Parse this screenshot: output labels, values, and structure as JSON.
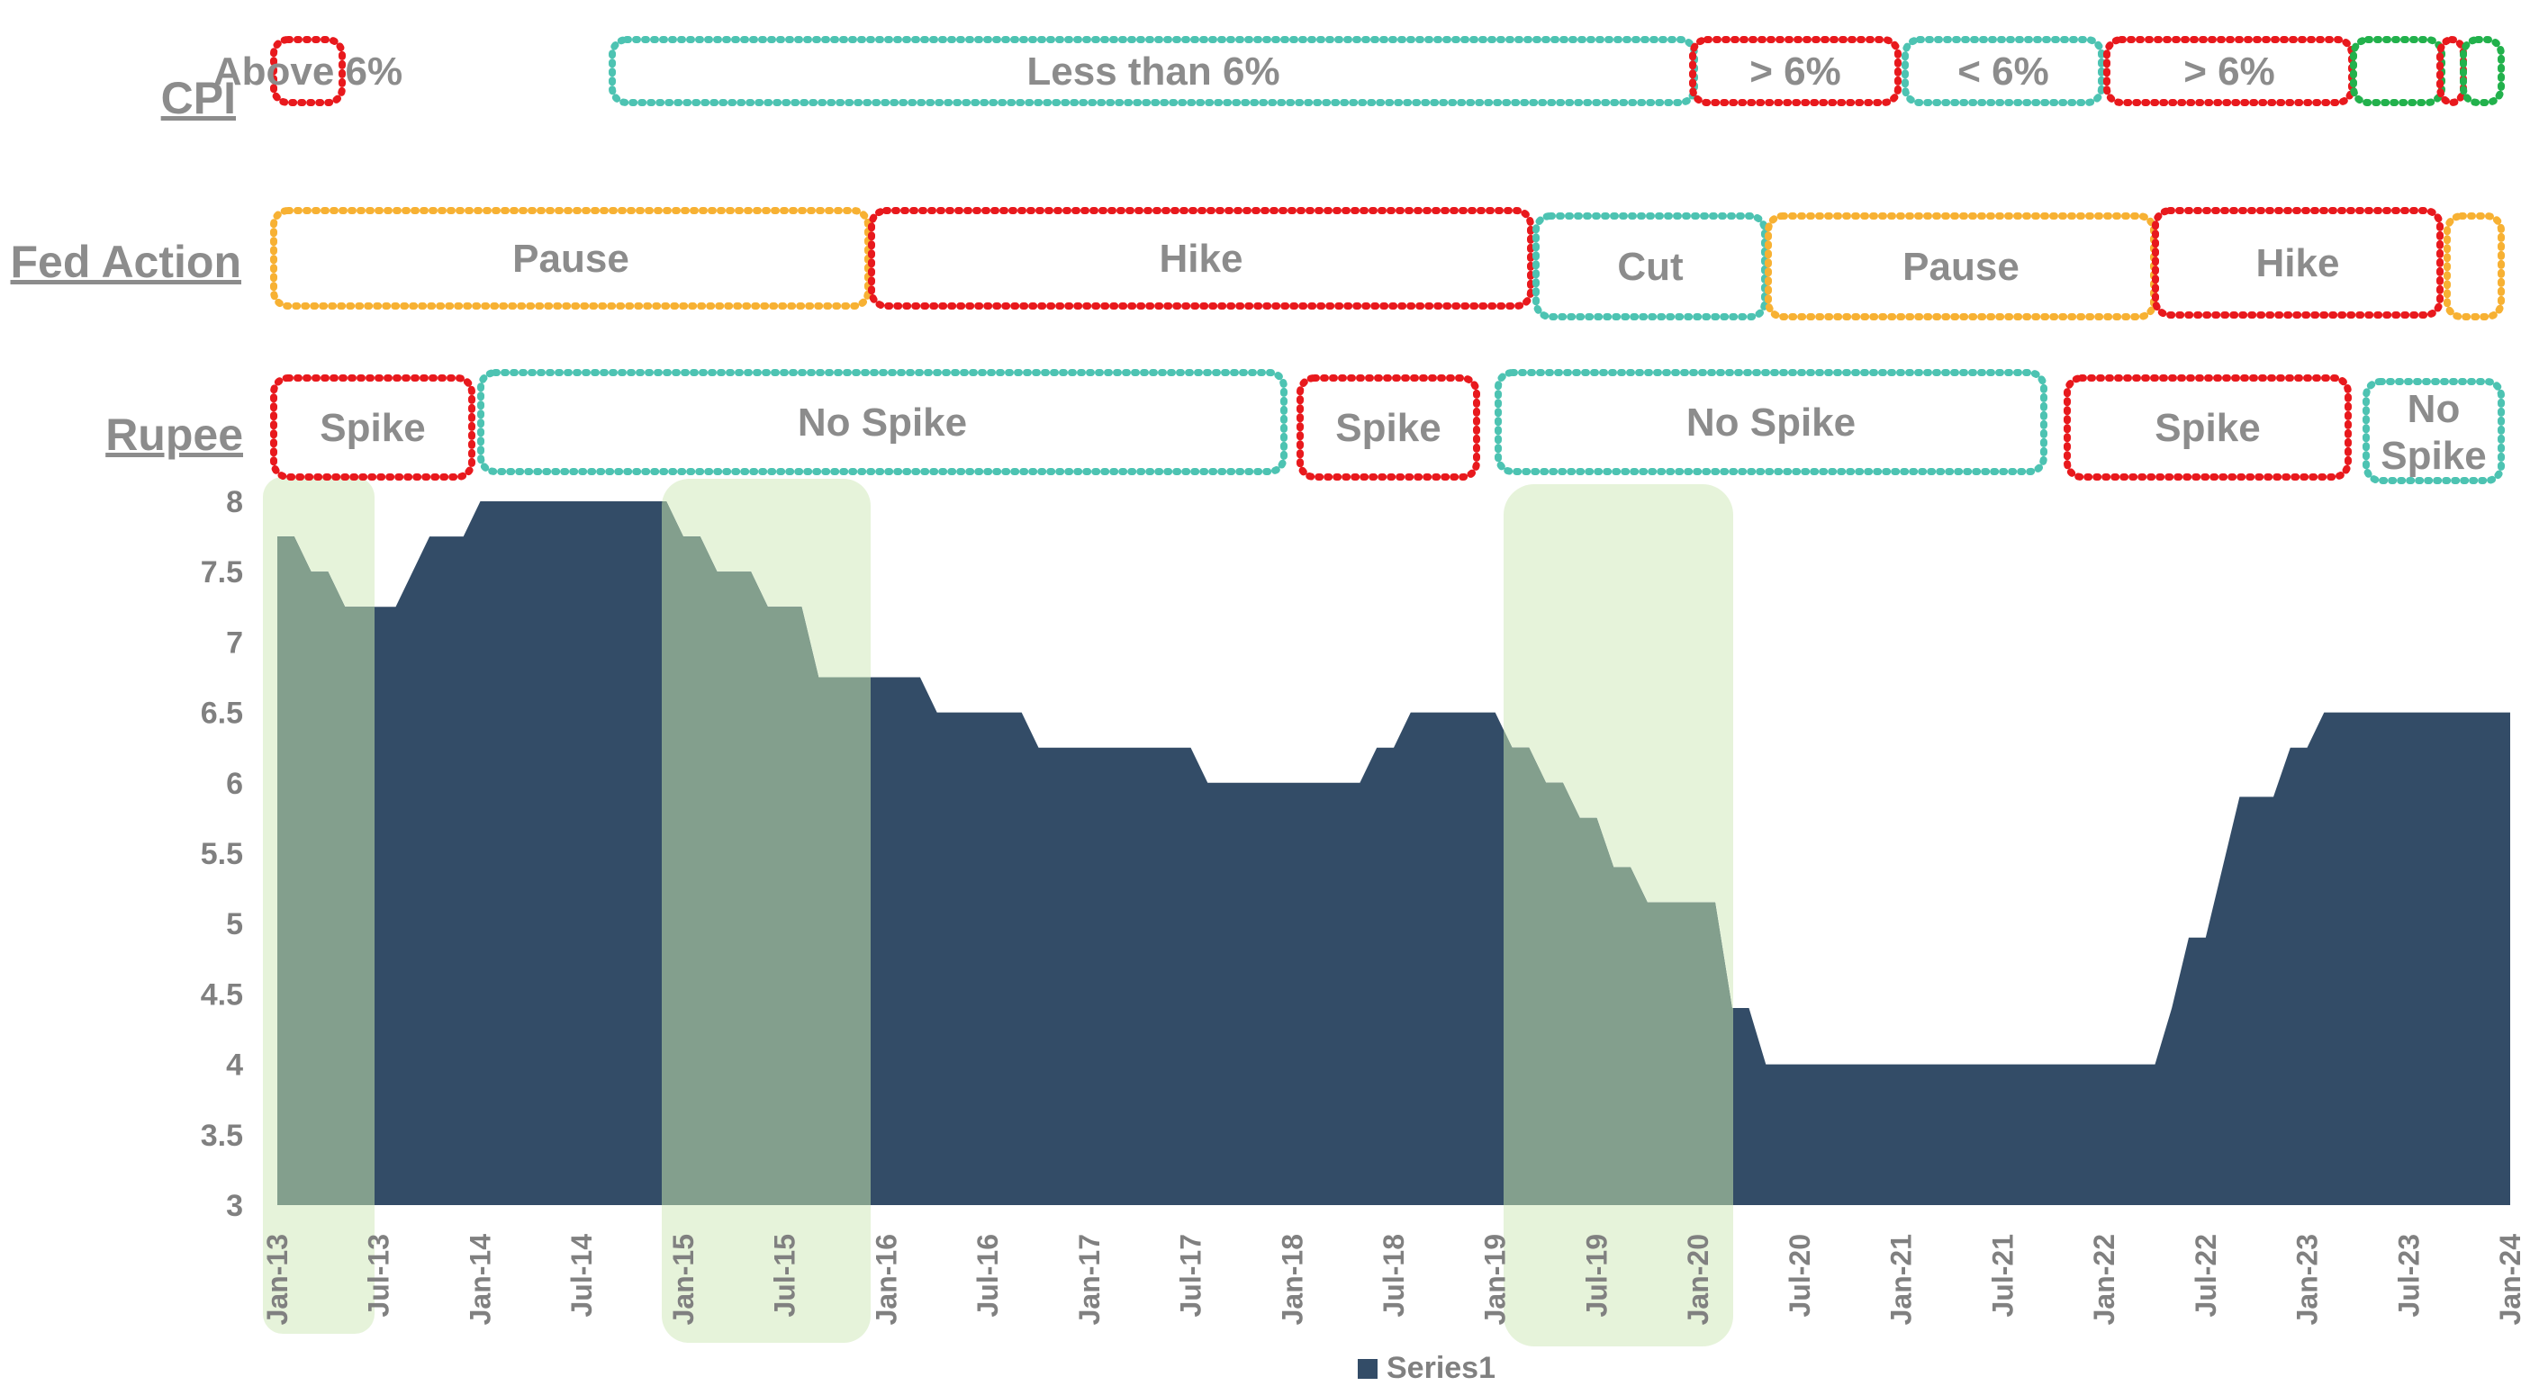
{
  "colors": {
    "area": "#334C67",
    "shade": "#E6F3DA",
    "overlap": "#839F8D",
    "red": "#E8191D",
    "teal": "#4DC3B2",
    "orange": "#F7B133",
    "green": "#22B14C",
    "label_gray": "#8C8C8C",
    "axis_text": "#808080"
  },
  "row_labels": {
    "cpi": "CPI",
    "fed": "Fed Action",
    "rupee": "Rupee"
  },
  "timeline": {
    "cpi": [
      {
        "label": "Above 6%",
        "color": "red"
      },
      {
        "label": "Less than 6%",
        "color": "teal"
      },
      {
        "label": "> 6%",
        "color": "red"
      },
      {
        "label": "< 6%",
        "color": "teal"
      },
      {
        "label": "> 6%",
        "color": "red"
      },
      {
        "label": "",
        "color": "green"
      },
      {
        "label": "",
        "color": "red"
      },
      {
        "label": "",
        "color": "green"
      }
    ],
    "fed": [
      {
        "label": "Pause",
        "color": "orange"
      },
      {
        "label": "Hike",
        "color": "red"
      },
      {
        "label": "Cut",
        "color": "teal"
      },
      {
        "label": "Pause",
        "color": "orange"
      },
      {
        "label": "Hike",
        "color": "red"
      },
      {
        "label": "",
        "color": "orange"
      }
    ],
    "rupee": [
      {
        "label": "Spike",
        "color": "red"
      },
      {
        "label": "No Spike",
        "color": "teal"
      },
      {
        "label": "Spike",
        "color": "red"
      },
      {
        "label": "No Spike",
        "color": "teal"
      },
      {
        "label": "Spike",
        "color": "red"
      },
      {
        "label": "No Spike",
        "color": "teal"
      }
    ]
  },
  "chart_data": {
    "type": "area",
    "title": "",
    "xlabel": "",
    "ylabel": "",
    "ylim": [
      3,
      8
    ],
    "y_ticks": [
      3,
      3.5,
      4,
      4.5,
      5,
      5.5,
      6,
      6.5,
      7,
      7.5,
      8
    ],
    "x_ticks": [
      "Jan-13",
      "Jul-13",
      "Jan-14",
      "Jul-14",
      "Jan-15",
      "Jul-15",
      "Jan-16",
      "Jul-16",
      "Jan-17",
      "Jul-17",
      "Jan-18",
      "Jul-18",
      "Jan-19",
      "Jul-19",
      "Jan-20",
      "Jul-20",
      "Jan-21",
      "Jul-21",
      "Jan-22",
      "Jul-22",
      "Jan-23",
      "Jul-23",
      "Jan-24"
    ],
    "legend": {
      "position": "bottom",
      "entries": [
        "Series1"
      ]
    },
    "series": [
      {
        "name": "Series1",
        "points": [
          [
            "2013-01",
            7.75
          ],
          [
            "2013-02",
            7.75
          ],
          [
            "2013-03",
            7.5
          ],
          [
            "2013-04",
            7.5
          ],
          [
            "2013-05",
            7.25
          ],
          [
            "2013-06",
            7.25
          ],
          [
            "2013-07",
            7.25
          ],
          [
            "2013-08",
            7.25
          ],
          [
            "2013-09",
            7.5
          ],
          [
            "2013-10",
            7.75
          ],
          [
            "2013-11",
            7.75
          ],
          [
            "2013-12",
            7.75
          ],
          [
            "2014-01",
            8
          ],
          [
            "2014-02",
            8
          ],
          [
            "2014-03",
            8
          ],
          [
            "2014-04",
            8
          ],
          [
            "2014-05",
            8
          ],
          [
            "2014-06",
            8
          ],
          [
            "2014-07",
            8
          ],
          [
            "2014-08",
            8
          ],
          [
            "2014-09",
            8
          ],
          [
            "2014-10",
            8
          ],
          [
            "2014-11",
            8
          ],
          [
            "2014-12",
            8
          ],
          [
            "2015-01",
            7.75
          ],
          [
            "2015-02",
            7.75
          ],
          [
            "2015-03",
            7.5
          ],
          [
            "2015-04",
            7.5
          ],
          [
            "2015-05",
            7.5
          ],
          [
            "2015-06",
            7.25
          ],
          [
            "2015-07",
            7.25
          ],
          [
            "2015-08",
            7.25
          ],
          [
            "2015-09",
            6.75
          ],
          [
            "2015-10",
            6.75
          ],
          [
            "2015-11",
            6.75
          ],
          [
            "2015-12",
            6.75
          ],
          [
            "2016-01",
            6.75
          ],
          [
            "2016-02",
            6.75
          ],
          [
            "2016-03",
            6.75
          ],
          [
            "2016-04",
            6.5
          ],
          [
            "2016-05",
            6.5
          ],
          [
            "2016-06",
            6.5
          ],
          [
            "2016-07",
            6.5
          ],
          [
            "2016-08",
            6.5
          ],
          [
            "2016-09",
            6.5
          ],
          [
            "2016-10",
            6.25
          ],
          [
            "2016-11",
            6.25
          ],
          [
            "2016-12",
            6.25
          ],
          [
            "2017-01",
            6.25
          ],
          [
            "2017-02",
            6.25
          ],
          [
            "2017-03",
            6.25
          ],
          [
            "2017-04",
            6.25
          ],
          [
            "2017-05",
            6.25
          ],
          [
            "2017-06",
            6.25
          ],
          [
            "2017-07",
            6.25
          ],
          [
            "2017-08",
            6
          ],
          [
            "2017-09",
            6
          ],
          [
            "2017-10",
            6
          ],
          [
            "2017-11",
            6
          ],
          [
            "2017-12",
            6
          ],
          [
            "2018-01",
            6
          ],
          [
            "2018-02",
            6
          ],
          [
            "2018-03",
            6
          ],
          [
            "2018-04",
            6
          ],
          [
            "2018-05",
            6
          ],
          [
            "2018-06",
            6.25
          ],
          [
            "2018-07",
            6.25
          ],
          [
            "2018-08",
            6.5
          ],
          [
            "2018-09",
            6.5
          ],
          [
            "2018-10",
            6.5
          ],
          [
            "2018-11",
            6.5
          ],
          [
            "2018-12",
            6.5
          ],
          [
            "2019-01",
            6.5
          ],
          [
            "2019-02",
            6.25
          ],
          [
            "2019-03",
            6.25
          ],
          [
            "2019-04",
            6
          ],
          [
            "2019-05",
            6
          ],
          [
            "2019-06",
            5.75
          ],
          [
            "2019-07",
            5.75
          ],
          [
            "2019-08",
            5.4
          ],
          [
            "2019-09",
            5.4
          ],
          [
            "2019-10",
            5.15
          ],
          [
            "2019-11",
            5.15
          ],
          [
            "2019-12",
            5.15
          ],
          [
            "2020-01",
            5.15
          ],
          [
            "2020-02",
            5.15
          ],
          [
            "2020-03",
            4.4
          ],
          [
            "2020-04",
            4.4
          ],
          [
            "2020-05",
            4
          ],
          [
            "2020-06",
            4
          ],
          [
            "2020-07",
            4
          ],
          [
            "2020-08",
            4
          ],
          [
            "2020-09",
            4
          ],
          [
            "2020-10",
            4
          ],
          [
            "2020-11",
            4
          ],
          [
            "2020-12",
            4
          ],
          [
            "2021-01",
            4
          ],
          [
            "2021-02",
            4
          ],
          [
            "2021-03",
            4
          ],
          [
            "2021-04",
            4
          ],
          [
            "2021-05",
            4
          ],
          [
            "2021-06",
            4
          ],
          [
            "2021-07",
            4
          ],
          [
            "2021-08",
            4
          ],
          [
            "2021-09",
            4
          ],
          [
            "2021-10",
            4
          ],
          [
            "2021-11",
            4
          ],
          [
            "2021-12",
            4
          ],
          [
            "2022-01",
            4
          ],
          [
            "2022-02",
            4
          ],
          [
            "2022-03",
            4
          ],
          [
            "2022-04",
            4
          ],
          [
            "2022-05",
            4.4
          ],
          [
            "2022-06",
            4.9
          ],
          [
            "2022-07",
            4.9
          ],
          [
            "2022-08",
            5.4
          ],
          [
            "2022-09",
            5.9
          ],
          [
            "2022-10",
            5.9
          ],
          [
            "2022-11",
            5.9
          ],
          [
            "2022-12",
            6.25
          ],
          [
            "2023-01",
            6.25
          ],
          [
            "2023-02",
            6.5
          ],
          [
            "2023-03",
            6.5
          ],
          [
            "2023-04",
            6.5
          ],
          [
            "2023-05",
            6.5
          ],
          [
            "2023-06",
            6.5
          ],
          [
            "2023-07",
            6.5
          ],
          [
            "2023-08",
            6.5
          ],
          [
            "2023-09",
            6.5
          ],
          [
            "2023-10",
            6.5
          ],
          [
            "2023-11",
            6.5
          ],
          [
            "2023-12",
            6.5
          ],
          [
            "2024-01",
            6.5
          ]
        ]
      }
    ]
  }
}
